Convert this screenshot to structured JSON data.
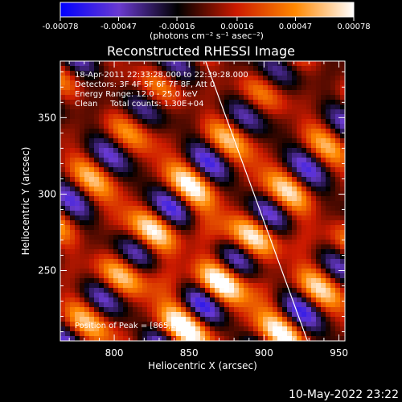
{
  "chart_data": {
    "type": "heatmap",
    "title": "Reconstructed RHESSI Image",
    "xlabel": "Heliocentric X (arcsec)",
    "ylabel": "Heliocentric Y (arcsec)",
    "x_range": [
      764,
      954
    ],
    "y_range": [
      204,
      387
    ],
    "x_ticks": [
      800,
      850,
      900,
      950
    ],
    "y_ticks": [
      250,
      300,
      350
    ],
    "colorbar": {
      "range": [
        -0.00078,
        0.00078
      ],
      "tick_values": [
        -0.00078,
        -0.00047,
        -0.00016,
        0.00016,
        0.00047,
        0.00078
      ],
      "tick_labels": [
        "-0.00078",
        "-0.00047",
        "-0.00016",
        "0.00016",
        "0.00047",
        "0.00078"
      ],
      "units_label": "(photons cm⁻² s⁻¹ asec⁻²)",
      "colormap": [
        "#0000ff",
        "#6a3ad0",
        "#000000",
        "#cc1a00",
        "#ff8800",
        "#ffffff"
      ]
    },
    "annotations": [
      "18-Apr-2011 22:33:28.000 to 22:39:28.000",
      "Detectors: 3F 4F 5F 6F 7F 8F, Att 0",
      "Energy Range: 12.0 - 25.0 keV",
      "Clean     Total counts: 1.30E+04"
    ],
    "peak_label": "Position of Peak = [865,246]",
    "peak": {
      "x": 865,
      "y": 246
    },
    "limb_line": [
      [
        861,
        387
      ],
      [
        929,
        204
      ]
    ]
  },
  "footer": {
    "date": "10-May-2022 23:22"
  }
}
